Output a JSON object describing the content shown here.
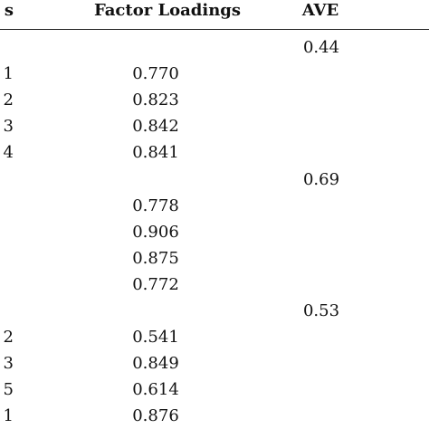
{
  "table": {
    "header": [
      "s",
      "Factor Loadings",
      "AVE"
    ],
    "rows": [
      {
        "ave": "0.44"
      },
      {
        "item": "1",
        "loading": "0.770"
      },
      {
        "item": "2",
        "loading": "0.823"
      },
      {
        "item": "3",
        "loading": "0.842"
      },
      {
        "item": "4",
        "loading": "0.841"
      },
      {
        "ave": "0.69"
      },
      {
        "loading": "0.778"
      },
      {
        "loading": "0.906"
      },
      {
        "loading": "0.875"
      },
      {
        "loading": "0.772"
      },
      {
        "ave": "0.53"
      },
      {
        "item": "2",
        "loading": "0.541"
      },
      {
        "item": "3",
        "loading": "0.849"
      },
      {
        "item": "5",
        "loading": "0.614"
      },
      {
        "item": "1",
        "loading": "0.876"
      }
    ]
  }
}
